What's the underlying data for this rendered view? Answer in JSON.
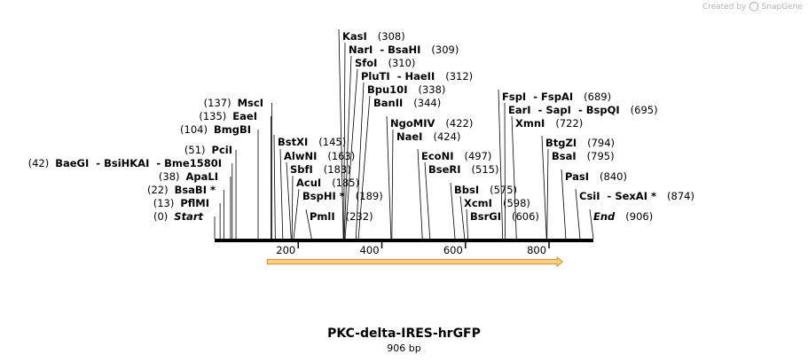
{
  "credit": {
    "text": "Created by",
    "brand": "SnapGene"
  },
  "title": "PKC-delta-IRES-hrGFP",
  "subtitle": "906 bp",
  "sequence": {
    "start_bp": 1,
    "end_bp": 906
  },
  "ticks": [
    200,
    400,
    600,
    800
  ],
  "feature": {
    "name": "",
    "start_bp": 126,
    "end_bp": 832,
    "direction": "forward",
    "fill": "#fbd28c",
    "stroke": "#e0962a"
  },
  "colors": {
    "backbone": "#000000",
    "leader": "#000000"
  },
  "sites": [
    {
      "parts": [
        "Start"
      ],
      "pos": "(0)",
      "bp": 0,
      "italic": true,
      "side": "left"
    },
    {
      "parts": [
        "PflMI"
      ],
      "pos": "(13)",
      "bp": 13,
      "side": "left"
    },
    {
      "parts": [
        "BsaBI *"
      ],
      "pos": "(22)",
      "bp": 22,
      "side": "left"
    },
    {
      "parts": [
        "ApaLI"
      ],
      "pos": "(38)",
      "bp": 38,
      "side": "left"
    },
    {
      "parts": [
        "BaeGI",
        "BsiHKAI",
        "Bme1580I"
      ],
      "pos": "(42)",
      "bp": 42,
      "side": "left"
    },
    {
      "parts": [
        "PciI"
      ],
      "pos": "(51)",
      "bp": 51,
      "side": "left"
    },
    {
      "parts": [
        "BmgBI"
      ],
      "pos": "(104)",
      "bp": 104,
      "side": "left"
    },
    {
      "parts": [
        "EaeI"
      ],
      "pos": "(135)",
      "bp": 135,
      "side": "left"
    },
    {
      "parts": [
        "MscI"
      ],
      "pos": "(137)",
      "bp": 137,
      "side": "left"
    },
    {
      "parts": [
        "BstXI"
      ],
      "pos": "(145)",
      "bp": 145,
      "side": "right"
    },
    {
      "parts": [
        "AlwNI"
      ],
      "pos": "(163)",
      "bp": 163,
      "side": "right"
    },
    {
      "parts": [
        "SbfI"
      ],
      "pos": "(183)",
      "bp": 183,
      "side": "right"
    },
    {
      "parts": [
        "AcuI"
      ],
      "pos": "(185)",
      "bp": 185,
      "side": "right"
    },
    {
      "parts": [
        "BspHI *"
      ],
      "pos": "(189)",
      "bp": 189,
      "side": "right"
    },
    {
      "parts": [
        "PmlI"
      ],
      "pos": "(232)",
      "bp": 232,
      "side": "right"
    },
    {
      "parts": [
        "KasI"
      ],
      "pos": "(308)",
      "bp": 308,
      "side": "right"
    },
    {
      "parts": [
        "NarI",
        "BsaHI"
      ],
      "pos": "(309)",
      "bp": 309,
      "side": "right"
    },
    {
      "parts": [
        "SfoI"
      ],
      "pos": "(310)",
      "bp": 310,
      "side": "right"
    },
    {
      "parts": [
        "PluTI",
        "HaeII"
      ],
      "pos": "(312)",
      "bp": 312,
      "side": "right"
    },
    {
      "parts": [
        "Bpu10I"
      ],
      "pos": "(338)",
      "bp": 338,
      "side": "right"
    },
    {
      "parts": [
        "BanII"
      ],
      "pos": "(344)",
      "bp": 344,
      "side": "right"
    },
    {
      "parts": [
        "NgoMIV"
      ],
      "pos": "(422)",
      "bp": 422,
      "side": "right"
    },
    {
      "parts": [
        "NaeI"
      ],
      "pos": "(424)",
      "bp": 424,
      "side": "right"
    },
    {
      "parts": [
        "EcoNI"
      ],
      "pos": "(497)",
      "bp": 497,
      "side": "right"
    },
    {
      "parts": [
        "BseRI"
      ],
      "pos": "(515)",
      "bp": 515,
      "side": "right"
    },
    {
      "parts": [
        "BbsI"
      ],
      "pos": "(575)",
      "bp": 575,
      "side": "right"
    },
    {
      "parts": [
        "XcmI"
      ],
      "pos": "(598)",
      "bp": 598,
      "side": "right"
    },
    {
      "parts": [
        "BsrGI"
      ],
      "pos": "(606)",
      "bp": 606,
      "side": "right"
    },
    {
      "parts": [
        "FspI",
        "FspAI"
      ],
      "pos": "(689)",
      "bp": 689,
      "side": "right"
    },
    {
      "parts": [
        "EarI",
        "SapI",
        "BspQI"
      ],
      "pos": "(695)",
      "bp": 695,
      "side": "right"
    },
    {
      "parts": [
        "XmnI"
      ],
      "pos": "(722)",
      "bp": 722,
      "side": "right"
    },
    {
      "parts": [
        "BtgZI"
      ],
      "pos": "(794)",
      "bp": 794,
      "side": "right"
    },
    {
      "parts": [
        "BsaI"
      ],
      "pos": "(795)",
      "bp": 795,
      "side": "right"
    },
    {
      "parts": [
        "PasI"
      ],
      "pos": "(840)",
      "bp": 840,
      "side": "right"
    },
    {
      "parts": [
        "CsiI",
        "SexAI *"
      ],
      "pos": "(874)",
      "bp": 874,
      "side": "right"
    },
    {
      "parts": [
        "End"
      ],
      "pos": "(906)",
      "bp": 906,
      "italic": true,
      "side": "right"
    }
  ]
}
